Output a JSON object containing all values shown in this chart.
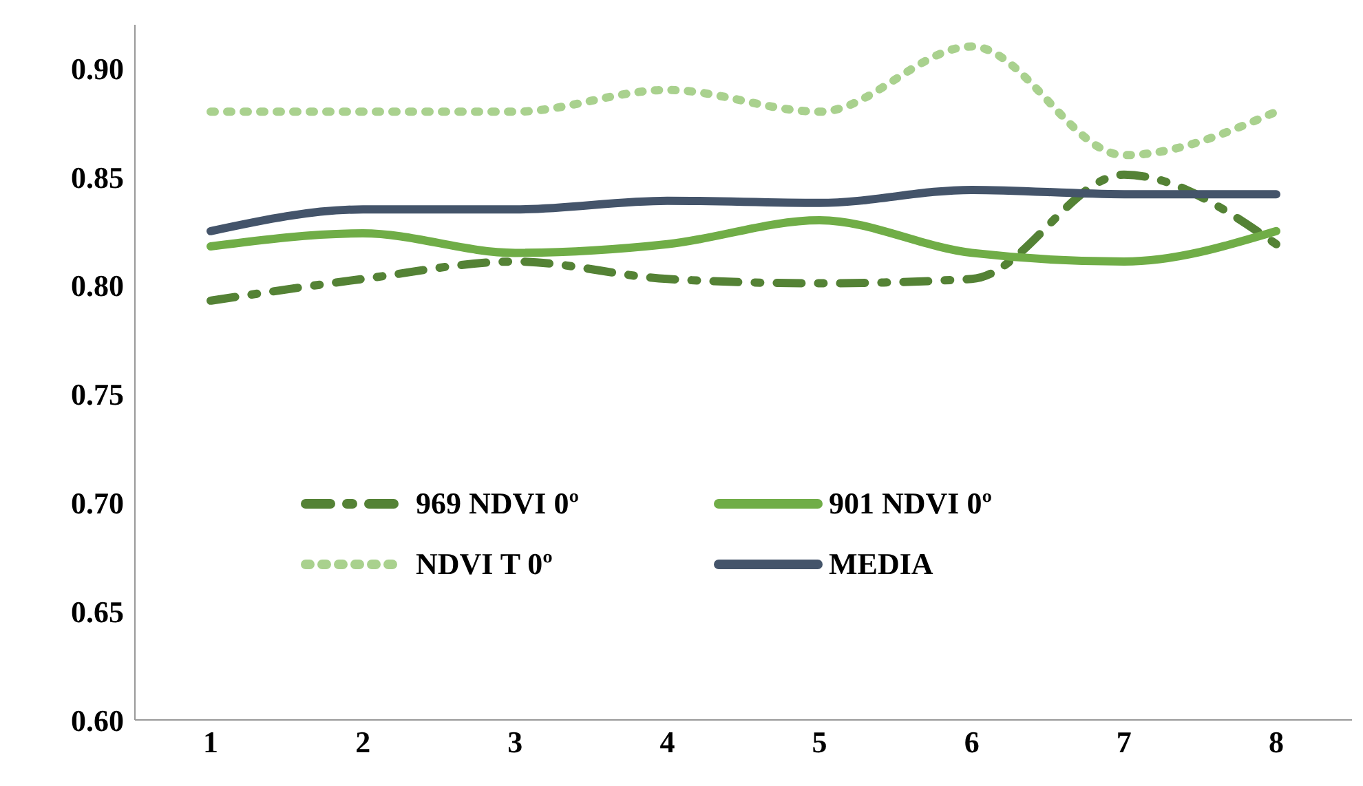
{
  "chart_data": {
    "type": "line",
    "categories": [
      "1",
      "2",
      "3",
      "4",
      "5",
      "6",
      "7",
      "8"
    ],
    "series": [
      {
        "name": "969 NDVI 0º",
        "color": "#548235",
        "line_style": "dashed",
        "values": [
          0.793,
          0.803,
          0.811,
          0.803,
          0.801,
          0.803,
          0.851,
          0.819
        ]
      },
      {
        "name": "901 NDVI 0º",
        "color": "#70ad47",
        "line_style": "solid",
        "values": [
          0.818,
          0.824,
          0.815,
          0.819,
          0.83,
          0.815,
          0.811,
          0.825
        ]
      },
      {
        "name": "NDVI T  0º",
        "color": "#a9d18e",
        "line_style": "dotted",
        "values": [
          0.88,
          0.88,
          0.88,
          0.89,
          0.88,
          0.91,
          0.86,
          0.88
        ]
      },
      {
        "name": "MEDIA",
        "color": "#44546a",
        "line_style": "solid",
        "values": [
          0.825,
          0.835,
          0.835,
          0.839,
          0.838,
          0.844,
          0.842,
          0.842
        ]
      }
    ],
    "ylim": [
      0.6,
      0.92
    ],
    "yticks": [
      {
        "value": 0.6,
        "label": "0.60"
      },
      0.65,
      {
        "value": 0.7,
        "label": "0.70"
      },
      0.75,
      {
        "value": 0.8,
        "label": "0.80"
      },
      0.85,
      {
        "value": 0.9,
        "label": "0.90"
      }
    ],
    "grid": false,
    "legend": "bottom left",
    "marker": "none"
  }
}
